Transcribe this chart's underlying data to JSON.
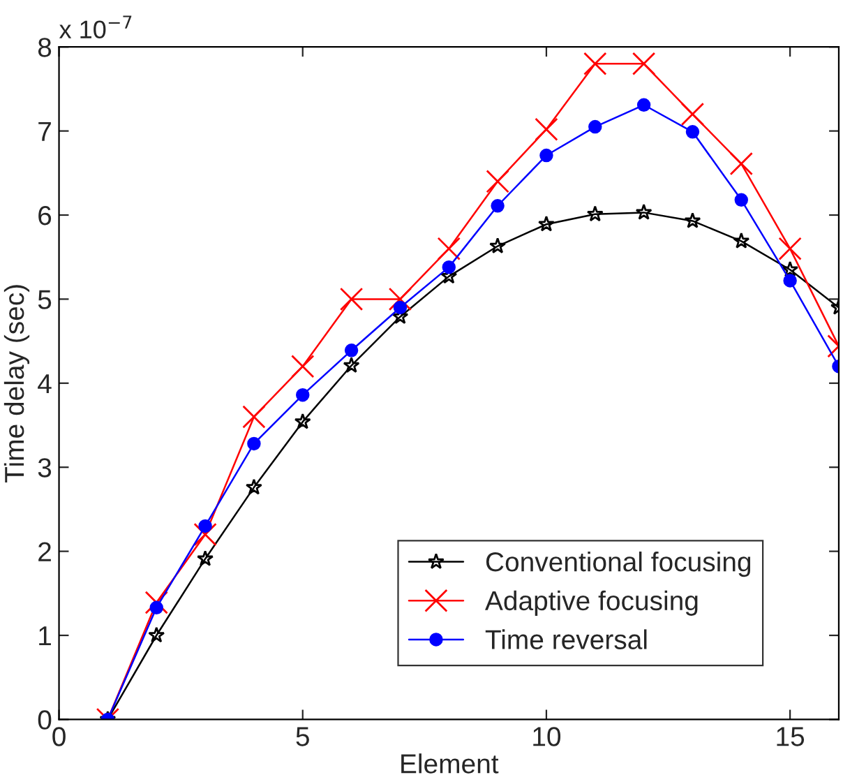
{
  "chart_data": {
    "type": "line",
    "xlabel": "Element",
    "ylabel": "Time delay (sec)",
    "annotations": [
      "x 10$^{−7}$"
    ],
    "x": [
      1,
      2,
      3,
      4,
      5,
      6,
      7,
      8,
      9,
      10,
      11,
      12,
      13,
      14,
      15,
      16
    ],
    "series": [
      {
        "name": "Conventional focusing",
        "color": "#000000",
        "marker": "star",
        "values": [
          0,
          1.0,
          1.91,
          2.76,
          3.54,
          4.21,
          4.79,
          5.27,
          5.63,
          5.89,
          6.01,
          6.03,
          5.93,
          5.69,
          5.35,
          4.9
        ]
      },
      {
        "name": "Adaptive focusing",
        "color": "#ff0000",
        "marker": "cross",
        "values": [
          0,
          1.39,
          2.2,
          3.6,
          4.2,
          5.0,
          5.0,
          5.6,
          6.4,
          7.02,
          7.8,
          7.8,
          7.2,
          6.61,
          5.6,
          4.44
        ]
      },
      {
        "name": "Time reversal",
        "color": "#0000ff",
        "marker": "circle",
        "values": [
          0,
          1.33,
          2.3,
          3.28,
          3.86,
          4.39,
          4.9,
          5.38,
          6.11,
          6.71,
          7.05,
          7.31,
          6.99,
          6.18,
          5.22,
          4.2
        ]
      }
    ],
    "xlim": [
      0,
      16
    ],
    "xticks": [
      0,
      5,
      10,
      15
    ],
    "ylim": [
      0,
      8
    ],
    "yticks": [
      0,
      1,
      2,
      3,
      4,
      5,
      6,
      7,
      8
    ],
    "grid": false,
    "legend": "bottom right"
  }
}
